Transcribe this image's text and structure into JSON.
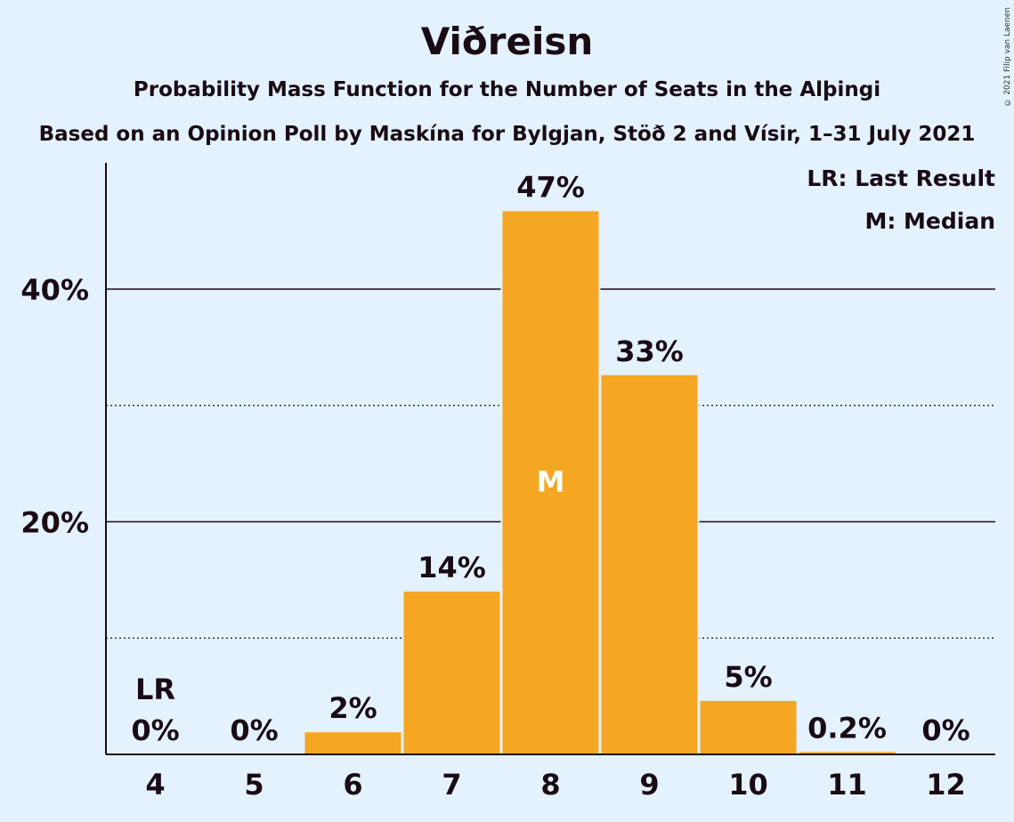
{
  "header": {
    "title": "Viðreisn",
    "subtitle": "Probability Mass Function for the Number of Seats in the Alþingi",
    "subtitle2": "Based on an Opinion Poll by Maskína for Bylgjan, Stöð 2 and Vísir, 1–31 July 2021",
    "copyright": "© 2021 Filip van Laenen"
  },
  "legend": {
    "lr": "LR: Last Result",
    "m": "M: Median",
    "placement": "top-right"
  },
  "colors": {
    "bar": "#f5a623",
    "background": "#e3f2fd",
    "text": "#1a0a14"
  },
  "chart_data": {
    "type": "bar",
    "categories": [
      "4",
      "5",
      "6",
      "7",
      "8",
      "9",
      "10",
      "11",
      "12"
    ],
    "values": [
      0,
      0,
      1.9,
      14.0,
      46.7,
      32.6,
      4.6,
      0.2,
      0
    ],
    "data_labels": [
      "0%",
      "0%",
      "2%",
      "14%",
      "47%",
      "33%",
      "5%",
      "0.2%",
      "0%"
    ],
    "title": "Viðreisn",
    "subtitle": "Probability Mass Function for the Number of Seats in the Alþingi",
    "xlabel": "",
    "ylabel": "",
    "ylim": [
      0,
      50
    ],
    "yticks": [
      20,
      40
    ],
    "ytick_labels": [
      "20%",
      "40%"
    ],
    "minor_gridlines": [
      10,
      30
    ],
    "last_result": "4",
    "last_result_label": "LR",
    "median": "8",
    "median_label": "M",
    "grid": true
  }
}
